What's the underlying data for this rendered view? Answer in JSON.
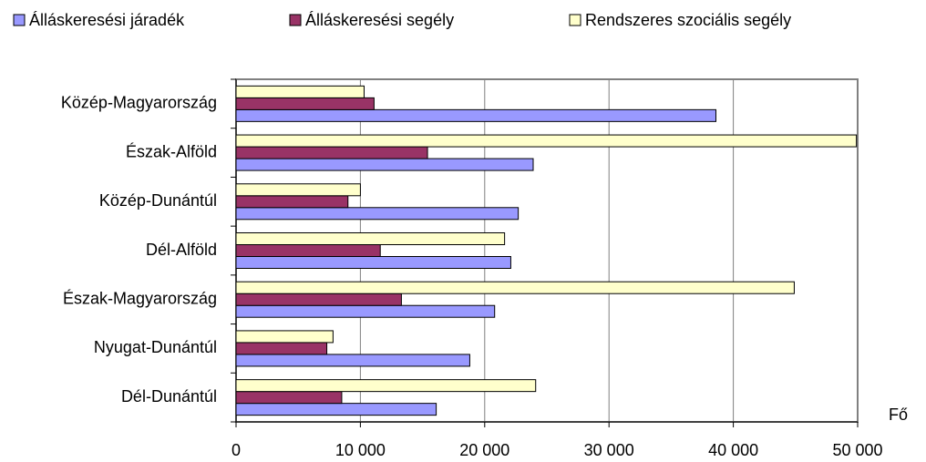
{
  "chart_data": {
    "type": "bar",
    "orientation": "horizontal",
    "categories": [
      "Közép-Magyarország",
      "Észak-Alföld",
      "Közép-Dunántúl",
      "Dél-Alföld",
      "Észak-Magyarország",
      "Nyugat-Dunántúl",
      "Dél-Dunántúl"
    ],
    "series": [
      {
        "name": "Álláskeresési járadék",
        "color": "#9999ff",
        "values": [
          38600,
          23900,
          22700,
          22100,
          20800,
          18800,
          16100
        ]
      },
      {
        "name": "Álláskeresési segély",
        "color": "#993366",
        "values": [
          11100,
          15400,
          9000,
          11600,
          13300,
          7300,
          8500
        ]
      },
      {
        "name": "Rendszeres szociális segély",
        "color": "#ffffcc",
        "values": [
          10300,
          49900,
          10000,
          21600,
          44900,
          7800,
          24100
        ]
      }
    ],
    "x_label": "Fő",
    "xlim": [
      0,
      50000
    ],
    "xticks": [
      0,
      {
        "value": 10000,
        "label": "10 000"
      },
      {
        "value": 20000,
        "label": "20 000"
      },
      {
        "value": 30000,
        "label": "30 000"
      },
      {
        "value": 40000,
        "label": "40 000"
      },
      {
        "value": 50000,
        "label": "50 000"
      }
    ],
    "grid": true,
    "legend": "top"
  }
}
